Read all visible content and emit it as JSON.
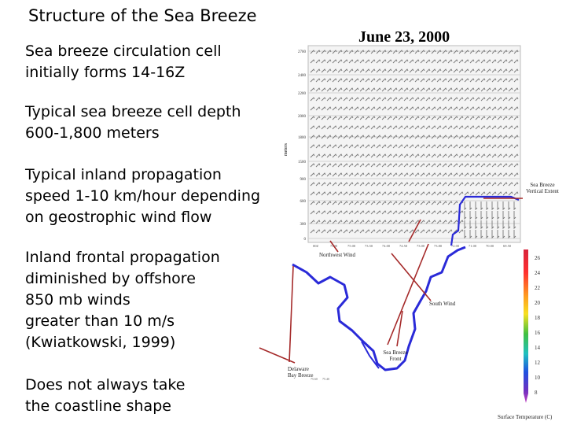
{
  "slide": {
    "title": "Structure of the Sea Breeze",
    "bullets": [
      "Sea breeze circulation cell\ninitially forms 14-16Z",
      "Typical sea breeze cell depth\n600-1,800 meters",
      "Typical inland propagation\nspeed 1-10 km/hour depending\non geostrophic wind flow",
      "Inland frontal propagation\ndiminished by offshore\n850 mb winds\ngreater than 10 m/s\n(Kwiatkowski, 1999)",
      "Does not always take\nthe coastline shape"
    ]
  },
  "figure": {
    "date": "June 23, 2000",
    "profiler": {
      "y_axis_label": "meters",
      "height_ticks": [
        "2700",
        "2400",
        "2200",
        "2000",
        "1800",
        "1500",
        "900",
        "600",
        "300",
        "0"
      ],
      "time_labels": [
        "00Z",
        "7500",
        "75.00",
        "73.50",
        "74.00",
        "74.50",
        "73.00",
        "73.80",
        "72.00",
        "71.00",
        "70.00",
        "69.50"
      ]
    },
    "annotations": {
      "vertical_extent": "Sea Breeze\nVertical Extent",
      "northwest_wind": "Northwest Wind",
      "south_wind": "South Wind",
      "front": "Sea Breeze\nFront",
      "delaware_bay": "Delaware\nBay Breeze",
      "colorbar_label": "Surface Temperature (C)"
    },
    "colorbar_ticks": [
      "26",
      "24",
      "22",
      "20",
      "18",
      "16",
      "14",
      "12",
      "10",
      "8"
    ],
    "colors": {
      "coast": "#2a2ad8",
      "arrow": "#a52a2a",
      "extent_line": "#2a2ad8"
    }
  }
}
